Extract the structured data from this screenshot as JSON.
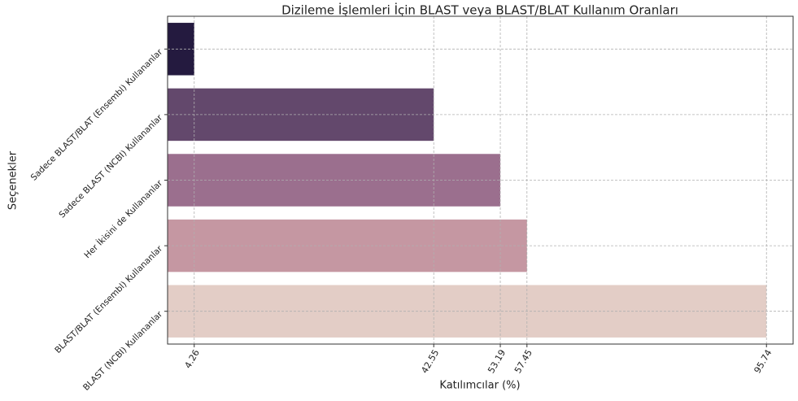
{
  "chart_data": {
    "type": "hbar",
    "title": "Dizileme İşlemleri İçin BLAST veya BLAST/BLAT Kullanım Oranları",
    "xlabel": "Katılımcılar (%)",
    "ylabel": "Seçenekler",
    "categories": [
      "Sadece BLAST/BLAT (Ensembl) Kullananlar",
      "Sadece BLAST (NCBI) Kullananlar",
      "Her İkisini de Kullananlar",
      "BLAST/BLAT (Ensembl) Kullananlar",
      "BLAST (NCBI) Kullananlar"
    ],
    "values": [
      4.26,
      42.55,
      53.19,
      57.45,
      95.74
    ],
    "colors": [
      "#241a3f",
      "#63486c",
      "#9b6f8e",
      "#c597a2",
      "#e3cdc6"
    ],
    "xlim": [
      0,
      100
    ],
    "xticks": [
      4.26,
      42.55,
      53.19,
      57.45,
      95.74
    ],
    "grid": true
  }
}
